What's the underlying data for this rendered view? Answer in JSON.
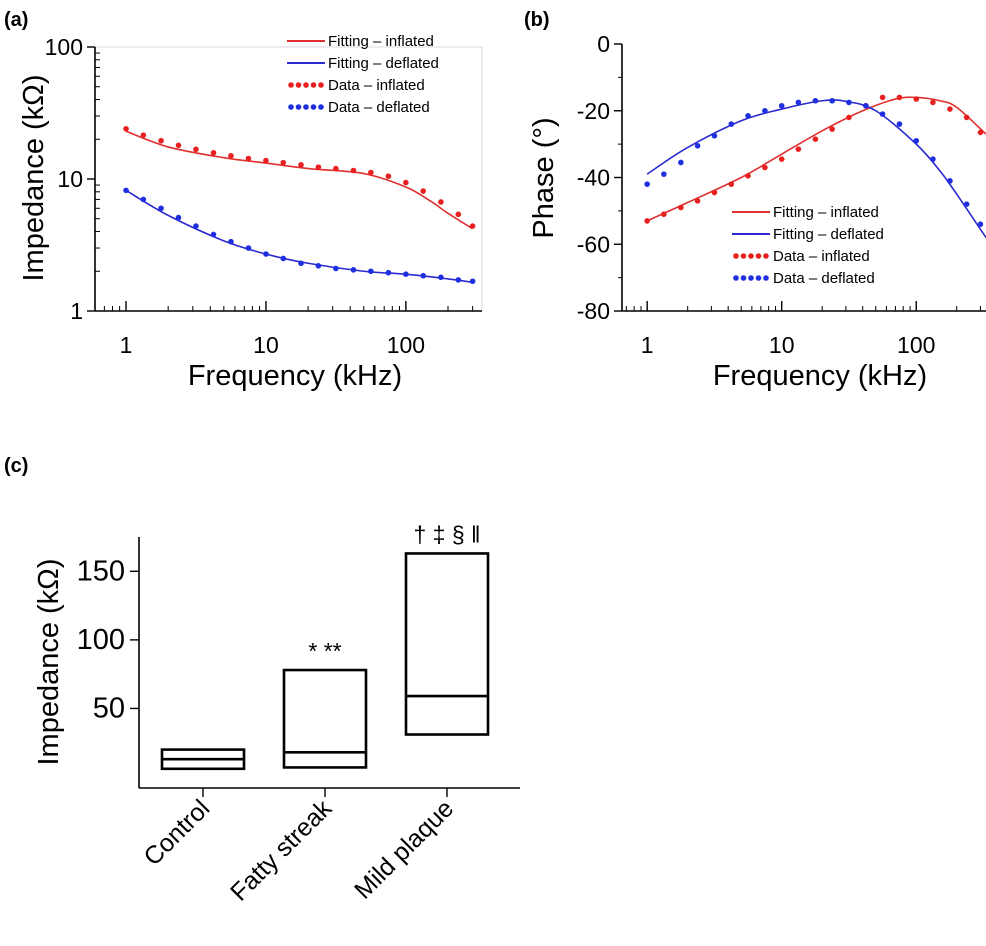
{
  "chart_data": [
    {
      "id": "a",
      "panel_label": "(a)",
      "type": "line",
      "xlabel": "Frequency (kHz)",
      "ylabel": "Impedance (kΩ)",
      "xscale": "log",
      "yscale": "log",
      "xlim": [
        0.6,
        350
      ],
      "ylim": [
        1,
        100
      ],
      "xticks": [
        1,
        10,
        100
      ],
      "xtick_labels": [
        "1",
        "10",
        "100"
      ],
      "yticks": [
        1,
        10,
        100
      ],
      "ytick_labels": [
        "1",
        "10",
        "100"
      ],
      "legend": {
        "placement": "top-right",
        "entries": [
          "Fitting – inflated",
          "Fitting – deflated",
          "Data – inflated",
          "Data – deflated"
        ]
      },
      "series": [
        {
          "name": "Fitting – inflated",
          "style": "line",
          "color": "#e03030",
          "x": [
            1,
            2,
            5,
            10,
            20,
            50,
            100,
            150,
            200,
            300
          ],
          "y": [
            23,
            17.5,
            14.5,
            13.2,
            12,
            11,
            8.7,
            6.8,
            5.5,
            4.2
          ]
        },
        {
          "name": "Fitting – deflated",
          "style": "line",
          "color": "#2a2ad0",
          "x": [
            1,
            2,
            5,
            10,
            20,
            50,
            100,
            200,
            300
          ],
          "y": [
            8.2,
            5.3,
            3.4,
            2.7,
            2.3,
            2.0,
            1.9,
            1.75,
            1.65
          ]
        },
        {
          "name": "Data – inflated",
          "style": "dots",
          "color": "#e82020",
          "x": [
            1,
            1.33,
            1.78,
            2.37,
            3.16,
            4.22,
            5.62,
            7.5,
            10,
            13.3,
            17.8,
            23.7,
            31.6,
            42.2,
            56.2,
            75,
            100,
            133,
            178,
            237,
            300
          ],
          "y": [
            24,
            21.5,
            19.5,
            18,
            16.8,
            15.8,
            15,
            14.3,
            13.8,
            13.3,
            12.8,
            12.3,
            12,
            11.6,
            11.2,
            10.5,
            9.4,
            8.1,
            6.7,
            5.4,
            4.4
          ]
        },
        {
          "name": "Data – deflated",
          "style": "dots",
          "color": "#1f2fe0",
          "x": [
            1,
            1.33,
            1.78,
            2.37,
            3.16,
            4.22,
            5.62,
            7.5,
            10,
            13.3,
            17.8,
            23.7,
            31.6,
            42.2,
            56.2,
            75,
            100,
            133,
            178,
            237,
            300
          ],
          "y": [
            8.2,
            7.0,
            6.0,
            5.1,
            4.4,
            3.8,
            3.35,
            3.0,
            2.7,
            2.5,
            2.3,
            2.2,
            2.1,
            2.05,
            2.0,
            1.95,
            1.9,
            1.85,
            1.8,
            1.72,
            1.68
          ]
        }
      ]
    },
    {
      "id": "b",
      "panel_label": "(b)",
      "type": "line",
      "xlabel": "Frequency (kHz)",
      "ylabel": "Phase (°)",
      "xscale": "log",
      "yscale": "linear",
      "xlim": [
        0.65,
        330
      ],
      "ylim": [
        -80,
        0
      ],
      "xticks": [
        1,
        10,
        100
      ],
      "xtick_labels": [
        "1",
        "10",
        "100"
      ],
      "yticks": [
        0,
        -20,
        -40,
        -60,
        -80
      ],
      "ytick_labels": [
        "0",
        "-20",
        "-40",
        "-60",
        "-80"
      ],
      "legend": {
        "placement": "bottom-right",
        "entries": [
          "Fitting – inflated",
          "Fitting – deflated",
          "Data – inflated",
          "Data – deflated"
        ]
      },
      "series": [
        {
          "name": "Fitting – inflated",
          "style": "line",
          "color": "#e03030",
          "x": [
            1,
            2,
            5,
            10,
            20,
            40,
            70,
            100,
            150,
            200,
            330
          ],
          "y": [
            -53,
            -47.5,
            -40,
            -33,
            -26,
            -20,
            -16.5,
            -16,
            -17,
            -19,
            -27
          ]
        },
        {
          "name": "Fitting – deflated",
          "style": "line",
          "color": "#2a2ad0",
          "x": [
            1,
            2,
            5,
            10,
            20,
            30,
            50,
            100,
            150,
            200,
            330
          ],
          "y": [
            -39,
            -31,
            -23,
            -19.5,
            -17,
            -17.2,
            -20,
            -30,
            -38,
            -45,
            -58
          ]
        },
        {
          "name": "Data – inflated",
          "style": "dots",
          "color": "#e82020",
          "x": [
            1,
            1.33,
            1.78,
            2.37,
            3.16,
            4.22,
            5.62,
            7.5,
            10,
            13.3,
            17.8,
            23.7,
            31.6,
            42.2,
            56.2,
            75,
            100,
            133,
            178,
            237,
            300
          ],
          "y": [
            -53,
            -51,
            -49,
            -47,
            -44.5,
            -42,
            -39.5,
            -37,
            -34.5,
            -31.5,
            -28.5,
            -25.5,
            -22,
            -18.5,
            -16,
            -16,
            -16.5,
            -17.5,
            -19.5,
            -22,
            -26.5
          ]
        },
        {
          "name": "Data – deflated",
          "style": "dots",
          "color": "#1f2fe0",
          "x": [
            1,
            1.33,
            1.78,
            2.37,
            3.16,
            4.22,
            5.62,
            7.5,
            10,
            13.3,
            17.8,
            23.7,
            31.6,
            42.2,
            56.2,
            75,
            100,
            133,
            178,
            237,
            300
          ],
          "y": [
            -42,
            -39,
            -35.5,
            -30.5,
            -27.5,
            -24,
            -21.5,
            -20,
            -18.5,
            -17.5,
            -17,
            -17,
            -17.5,
            -18.5,
            -21,
            -24,
            -29,
            -34.5,
            -41,
            -48,
            -54
          ]
        }
      ]
    },
    {
      "id": "c",
      "panel_label": "(c)",
      "type": "box",
      "ylabel": "Impedance (kΩ)",
      "ylim": [
        -8,
        175
      ],
      "yticks": [
        50,
        100,
        150
      ],
      "ytick_labels": [
        "50",
        "100",
        "150"
      ],
      "categories": [
        "Control",
        "Fatty streak",
        "Mild plaque"
      ],
      "boxes": [
        {
          "category": "Control",
          "low": 6,
          "median": 13,
          "high": 20,
          "annotation": ""
        },
        {
          "category": "Fatty streak",
          "low": 7,
          "median": 18,
          "high": 78,
          "annotation": "*   **"
        },
        {
          "category": "Mild plaque",
          "low": 31,
          "median": 59,
          "high": 163,
          "annotation": "† ‡ § ‖"
        }
      ]
    }
  ]
}
